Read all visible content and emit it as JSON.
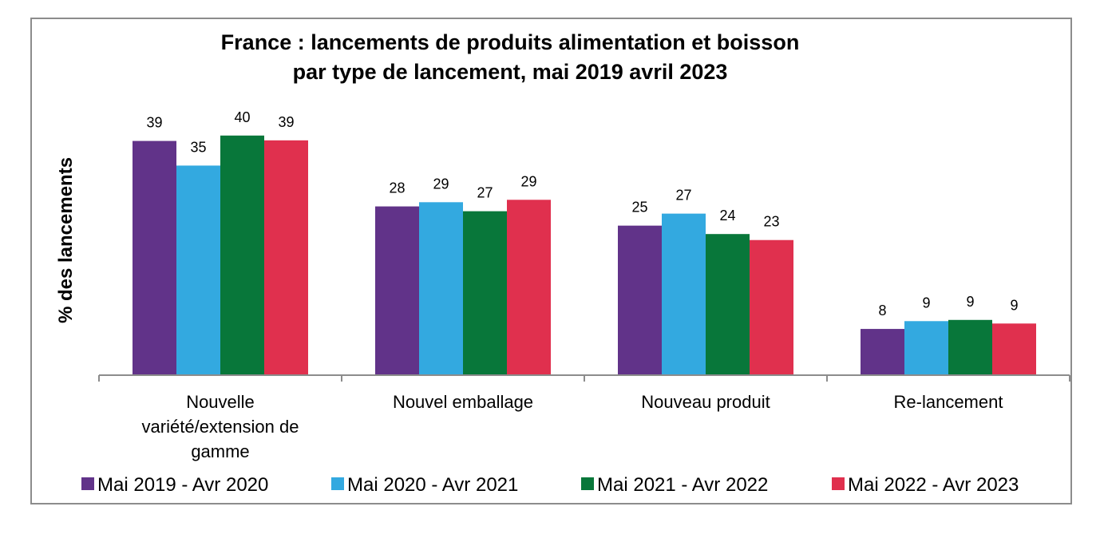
{
  "chart_data": {
    "type": "bar",
    "title_lines": [
      "France : lancements de produits alimentation et boisson",
      "par type de lancement, mai 2019 avril 2023"
    ],
    "xlabel": "",
    "ylabel": "% des lancements",
    "categories": [
      [
        "Nouvelle",
        "variété/extension de",
        "gamme"
      ],
      [
        "Nouvel emballage"
      ],
      [
        "Nouveau produit"
      ],
      [
        "Re-lancement"
      ]
    ],
    "series": [
      {
        "name": "Mai 2019 - Avr 2020",
        "color": "#613389",
        "values": [
          39,
          28,
          25,
          8
        ]
      },
      {
        "name": "Mai 2020 - Avr 2021",
        "color": "#33a9e0",
        "values": [
          35,
          29,
          27,
          9
        ]
      },
      {
        "name": "Mai 2021 - Avr 2022",
        "color": "#08773a",
        "values": [
          40,
          27,
          24,
          9
        ]
      },
      {
        "name": "Mai 2022 - Avr 2023",
        "color": "#e0304e",
        "values": [
          39,
          29,
          23,
          9
        ]
      }
    ],
    "bar_values": [
      [
        39.0,
        28.1,
        24.9,
        7.7
      ],
      [
        34.9,
        28.8,
        26.9,
        9.0
      ],
      [
        39.9,
        27.3,
        23.5,
        9.2
      ],
      [
        39.1,
        29.2,
        22.5,
        8.6
      ]
    ],
    "ylim": [
      0,
      42
    ],
    "grid": false,
    "legend_position": "bottom"
  }
}
